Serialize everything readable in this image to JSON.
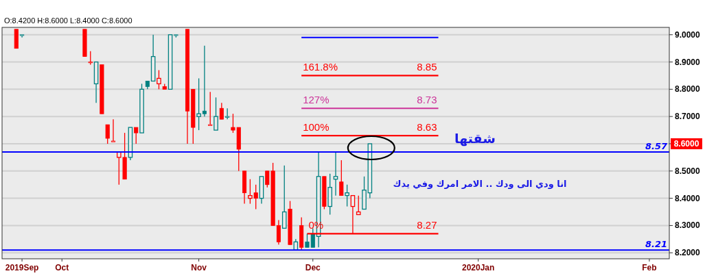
{
  "chart_data": {
    "type": "candlestick",
    "categories": [
      null,
      null,
      null,
      "2019Sep",
      null,
      null,
      null,
      null,
      null,
      null,
      "Oct",
      null,
      null,
      null,
      null,
      null,
      null,
      null,
      null,
      null,
      null,
      null,
      null,
      null,
      null,
      null,
      null,
      null,
      null,
      null,
      null,
      null,
      null,
      null,
      "Nov",
      null,
      null,
      null,
      null,
      null,
      null,
      null,
      null,
      null,
      null,
      null,
      null,
      null,
      null,
      null,
      null,
      null,
      null,
      null,
      "Dec",
      null,
      null,
      null,
      null,
      null,
      null,
      null,
      null,
      null,
      null,
      null,
      null,
      null,
      null,
      null,
      null,
      null,
      null,
      null,
      null,
      null,
      null,
      null,
      null,
      null,
      null,
      null,
      null,
      "2020Jan",
      null,
      null,
      null,
      null,
      null,
      null,
      null,
      null,
      null,
      null,
      null,
      null,
      null,
      null,
      null,
      null,
      null,
      null,
      null,
      null,
      null,
      null,
      null,
      null,
      null,
      null,
      null,
      null,
      null,
      "Feb",
      null,
      null,
      null
    ],
    "ohlc": [
      null,
      null,
      [
        9.02,
        9.02,
        8.95,
        8.95
      ],
      [
        9.0,
        9.0,
        8.99,
        9.0
      ],
      null,
      null,
      null,
      null,
      null,
      null,
      null,
      null,
      null,
      null,
      [
        9.02,
        9.02,
        8.92,
        8.92
      ],
      [
        8.9,
        8.94,
        8.89,
        8.9
      ],
      [
        8.82,
        8.9,
        8.75,
        8.9
      ],
      [
        8.89,
        8.89,
        8.71,
        8.71
      ],
      [
        8.67,
        8.67,
        8.6,
        8.62
      ],
      [
        8.61,
        8.69,
        8.61,
        8.61
      ],
      [
        8.55,
        8.57,
        8.45,
        8.57
      ],
      [
        8.55,
        8.64,
        8.47,
        8.47
      ],
      [
        8.55,
        8.66,
        8.54,
        8.66
      ],
      [
        8.66,
        8.66,
        8.6,
        8.64
      ],
      [
        8.64,
        8.82,
        8.64,
        8.8
      ],
      [
        8.83,
        8.83,
        8.8,
        8.81
      ],
      [
        8.83,
        9.0,
        8.83,
        8.92
      ],
      [
        8.82,
        8.87,
        8.8,
        8.84
      ],
      [
        8.81,
        8.82,
        8.8,
        8.8
      ],
      [
        8.8,
        9.0,
        8.8,
        9.0
      ],
      [
        9.0,
        9.0,
        8.99,
        9.0
      ],
      null,
      [
        9.02,
        9.02,
        8.6,
        8.72
      ],
      [
        8.8,
        8.8,
        8.6,
        8.66
      ],
      [
        8.7,
        8.84,
        8.65,
        8.71
      ],
      [
        8.72,
        8.96,
        8.7,
        8.71
      ],
      [
        8.67,
        8.79,
        8.67,
        8.67
      ],
      [
        8.65,
        8.77,
        8.65,
        8.7
      ],
      [
        8.73,
        8.75,
        8.69,
        8.69
      ],
      [
        8.7,
        8.73,
        8.69,
        8.7
      ],
      [
        8.66,
        8.71,
        8.64,
        8.65
      ],
      [
        8.66,
        8.66,
        8.5,
        8.58
      ],
      [
        8.5,
        8.5,
        8.38,
        8.42
      ],
      [
        8.4,
        8.47,
        8.38,
        8.41
      ],
      [
        8.42,
        8.45,
        8.36,
        8.4
      ],
      [
        8.4,
        8.48,
        8.38,
        8.48
      ],
      [
        8.5,
        8.5,
        8.44,
        8.45
      ],
      [
        8.5,
        8.53,
        8.3,
        8.3
      ],
      [
        8.3,
        8.32,
        8.23,
        8.24
      ],
      [
        8.29,
        8.52,
        8.29,
        8.35
      ],
      [
        8.36,
        8.39,
        8.23,
        8.23
      ],
      [
        8.21,
        8.25,
        8.21,
        8.24
      ],
      [
        8.3,
        8.33,
        8.21,
        8.22
      ],
      [
        8.24,
        8.27,
        8.22,
        8.22
      ],
      [
        8.27,
        8.29,
        8.22,
        8.22
      ],
      [
        8.26,
        8.57,
        8.22,
        8.48
      ],
      [
        8.48,
        8.48,
        8.36,
        8.37
      ],
      [
        8.37,
        8.49,
        8.34,
        8.44
      ],
      [
        8.47,
        8.57,
        8.41,
        8.48
      ],
      [
        8.46,
        8.54,
        8.41,
        8.41
      ],
      [
        8.41,
        8.45,
        8.37,
        8.42
      ],
      [
        8.37,
        8.41,
        8.27,
        8.41
      ],
      [
        8.34,
        8.41,
        8.34,
        8.35
      ],
      [
        8.36,
        8.48,
        8.36,
        8.43
      ],
      [
        8.42,
        8.6,
        8.4,
        8.6
      ],
      null,
      null,
      null,
      null,
      null,
      null,
      null,
      null,
      null,
      null,
      null,
      null,
      null,
      null,
      null,
      null,
      null,
      null,
      null,
      null,
      null,
      null,
      null,
      null,
      null,
      null,
      null,
      null,
      null,
      null,
      null,
      null,
      null,
      null,
      null,
      null,
      null,
      null,
      null,
      null,
      null,
      null,
      null,
      null,
      null,
      null,
      null,
      null,
      null,
      null,
      null,
      null
    ],
    "colors": [
      null,
      null,
      "#ff0000",
      "#008080",
      null,
      null,
      null,
      null,
      null,
      null,
      null,
      null,
      null,
      null,
      "#ff0000",
      "#ff0000",
      "#008080",
      "#ff0000",
      "#ff0000",
      "#ff0000",
      "#ff0000",
      "#ff0000",
      "#008080",
      "#ff0000",
      "#008080",
      "#008080",
      "#008080",
      "#ff0000",
      "#ff0000",
      "#008080",
      "#008080",
      null,
      "#ff0000",
      "#ff0000",
      "#008080",
      "#008080",
      "#ff0000",
      "#008080",
      "#ff0000",
      "#008080",
      "#ff0000",
      "#ff0000",
      "#ff0000",
      "#ff0000",
      "#ff0000",
      "#008080",
      "#ff0000",
      "#ff0000",
      "#ff0000",
      "#008080",
      "#ff0000",
      "#008080",
      "#ff0000",
      "#008080",
      "#008080",
      "#008080",
      "#ff0000",
      "#008080",
      "#008080",
      "#ff0000",
      "#008080",
      "#ff0000",
      "#ff0000",
      "#008080",
      "#008080",
      null,
      null,
      null,
      null,
      null,
      null,
      null,
      null,
      null,
      null,
      null,
      null,
      null,
      null,
      null,
      null,
      null,
      null,
      null,
      null,
      null,
      null,
      null,
      null,
      null,
      null,
      null,
      null,
      null,
      null,
      null,
      null,
      null,
      null,
      null,
      null,
      null,
      null,
      null,
      null,
      null,
      null,
      null,
      null,
      null,
      null,
      null,
      null,
      null,
      null,
      null,
      null
    ],
    "series": [
      {
        "type": "line",
        "color": "#0000ff",
        "values": [
          null,
          null,
          null,
          null,
          null,
          null,
          null,
          null,
          null,
          null,
          null,
          null,
          null,
          null,
          null,
          null,
          null,
          null,
          null,
          null,
          null,
          null,
          null,
          null,
          null,
          null,
          null,
          null,
          null,
          null,
          null,
          null,
          null,
          null,
          null,
          null,
          null,
          null,
          null,
          null,
          null,
          null,
          null,
          null,
          null,
          null,
          null,
          null,
          null,
          null,
          null,
          null,
          8.99,
          8.99,
          8.99,
          8.99,
          8.99,
          8.99,
          8.99,
          8.99,
          8.99,
          8.99,
          8.99,
          8.99,
          8.99,
          8.99,
          8.99,
          8.99,
          8.99,
          8.99,
          8.99,
          8.99,
          8.99,
          8.99,
          8.99,
          8.99,
          8.99,
          null,
          null,
          null,
          null,
          null,
          null,
          null,
          null,
          null,
          null,
          null,
          null,
          null,
          null,
          null,
          null,
          null,
          null,
          null,
          null,
          null,
          null,
          null,
          null,
          null,
          null,
          null,
          null,
          null,
          null,
          null,
          null,
          null,
          null,
          null,
          null,
          null,
          null,
          null,
          null
        ]
      },
      {
        "type": "line",
        "color": "#ff0000",
        "values": [
          null,
          null,
          null,
          null,
          null,
          null,
          null,
          null,
          null,
          null,
          null,
          null,
          null,
          null,
          null,
          null,
          null,
          null,
          null,
          null,
          null,
          null,
          null,
          null,
          null,
          null,
          null,
          null,
          null,
          null,
          null,
          null,
          null,
          null,
          null,
          null,
          null,
          null,
          null,
          null,
          null,
          null,
          null,
          null,
          null,
          null,
          null,
          null,
          null,
          null,
          null,
          null,
          8.85,
          8.85,
          8.85,
          8.85,
          8.85,
          8.85,
          8.85,
          8.85,
          8.85,
          8.85,
          8.85,
          8.85,
          8.85,
          8.85,
          8.85,
          8.85,
          8.85,
          8.85,
          8.85,
          8.85,
          8.85,
          8.85,
          8.85,
          8.85,
          8.85,
          null,
          null,
          null,
          null,
          null,
          null,
          null,
          null,
          null,
          null,
          null,
          null,
          null,
          null,
          null,
          null,
          null,
          null,
          null,
          null,
          null,
          null,
          null,
          null,
          null,
          null,
          null,
          null,
          null,
          null,
          null,
          null,
          null,
          null,
          null,
          null,
          null,
          null,
          null,
          null
        ]
      },
      {
        "type": "line",
        "color": "#cc3399",
        "values": [
          null,
          null,
          null,
          null,
          null,
          null,
          null,
          null,
          null,
          null,
          null,
          null,
          null,
          null,
          null,
          null,
          null,
          null,
          null,
          null,
          null,
          null,
          null,
          null,
          null,
          null,
          null,
          null,
          null,
          null,
          null,
          null,
          null,
          null,
          null,
          null,
          null,
          null,
          null,
          null,
          null,
          null,
          null,
          null,
          null,
          null,
          null,
          null,
          null,
          null,
          null,
          null,
          8.73,
          8.73,
          8.73,
          8.73,
          8.73,
          8.73,
          8.73,
          8.73,
          8.73,
          8.73,
          8.73,
          8.73,
          8.73,
          8.73,
          8.73,
          8.73,
          8.73,
          8.73,
          8.73,
          8.73,
          8.73,
          8.73,
          8.73,
          8.73,
          8.73,
          null,
          null,
          null,
          null,
          null,
          null,
          null,
          null,
          null,
          null,
          null,
          null,
          null,
          null,
          null,
          null,
          null,
          null,
          null,
          null,
          null,
          null,
          null,
          null,
          null,
          null,
          null,
          null,
          null,
          null,
          null,
          null,
          null,
          null,
          null,
          null,
          null,
          null,
          null,
          null
        ]
      },
      {
        "type": "line",
        "color": "#ff0000",
        "values": [
          null,
          null,
          null,
          null,
          null,
          null,
          null,
          null,
          null,
          null,
          null,
          null,
          null,
          null,
          null,
          null,
          null,
          null,
          null,
          null,
          null,
          null,
          null,
          null,
          null,
          null,
          null,
          null,
          null,
          null,
          null,
          null,
          null,
          null,
          null,
          null,
          null,
          null,
          null,
          null,
          null,
          null,
          null,
          null,
          null,
          null,
          null,
          null,
          null,
          null,
          null,
          null,
          8.63,
          8.63,
          8.63,
          8.63,
          8.63,
          8.63,
          8.63,
          8.63,
          8.63,
          8.63,
          8.63,
          8.63,
          8.63,
          8.63,
          8.63,
          8.63,
          8.63,
          8.63,
          8.63,
          8.63,
          8.63,
          8.63,
          8.63,
          8.63,
          8.63,
          null,
          null,
          null,
          null,
          null,
          null,
          null,
          null,
          null,
          null,
          null,
          null,
          null,
          null,
          null,
          null,
          null,
          null,
          null,
          null,
          null,
          null,
          null,
          null,
          null,
          null,
          null,
          null,
          null,
          null,
          null,
          null,
          null,
          null,
          null,
          null,
          null,
          null,
          null,
          null
        ]
      },
      {
        "type": "line",
        "color": "#ff0000",
        "values": [
          null,
          null,
          null,
          null,
          null,
          null,
          null,
          null,
          null,
          null,
          null,
          null,
          null,
          null,
          null,
          null,
          null,
          null,
          null,
          null,
          null,
          null,
          null,
          null,
          null,
          null,
          null,
          null,
          null,
          null,
          null,
          null,
          null,
          null,
          null,
          null,
          null,
          null,
          null,
          null,
          null,
          null,
          null,
          null,
          null,
          null,
          null,
          null,
          null,
          null,
          null,
          null,
          null,
          8.27,
          8.27,
          8.27,
          8.27,
          8.27,
          8.27,
          8.27,
          8.27,
          8.27,
          8.27,
          8.27,
          8.27,
          8.27,
          8.27,
          8.27,
          8.27,
          8.27,
          8.27,
          8.27,
          8.27,
          8.27,
          8.27,
          8.27,
          8.27,
          null,
          null,
          null,
          null,
          null,
          null,
          null,
          null,
          null,
          null,
          null,
          null,
          null,
          null,
          null,
          null,
          null,
          null,
          null,
          null,
          null,
          null,
          null,
          null,
          null,
          null,
          null,
          null,
          null,
          null,
          null,
          null,
          null,
          null,
          null,
          null,
          null,
          null,
          null,
          null
        ]
      }
    ],
    "ref_lines": [
      {
        "axis": "y",
        "value": 8.57,
        "label": "8.57",
        "color": "#0000ff"
      },
      {
        "axis": "y",
        "value": 8.21,
        "label": "8.21",
        "color": "#0000ff"
      }
    ],
    "annotations": [
      "O:8.4200 H:8.6000 L:8.4000 C:8.6000",
      {
        "text": "161.8%",
        "y": 8.85
      },
      {
        "text": "8.85",
        "y": 8.85
      },
      {
        "text": "127%",
        "y": 8.73
      },
      {
        "text": "8.73",
        "y": 8.73
      },
      {
        "text": "100%",
        "y": 8.63
      },
      {
        "text": "8.63",
        "y": 8.63
      },
      {
        "text": "0%",
        "y": 8.27
      },
      {
        "text": "8.27",
        "y": 8.27
      },
      "شقتها",
      "انا ودي الى ودك .. الامر امرك وفي يدك",
      "8.6000"
    ],
    "ylim": [
      8.178,
      9.027
    ],
    "yticks": [
      {
        "value": 8.2,
        "label": "8.2000"
      },
      {
        "value": 8.3,
        "label": "8.3000"
      },
      {
        "value": 8.4,
        "label": "8.4000"
      },
      {
        "value": 8.5,
        "label": "8.5000"
      },
      {
        "value": 8.6,
        "label": null
      },
      {
        "value": 8.7,
        "label": "8.7000"
      },
      {
        "value": 8.8,
        "label": "8.8000"
      },
      {
        "value": 8.9,
        "label": "8.9000"
      },
      {
        "value": 9.0,
        "label": "9.0000"
      }
    ],
    "grid": "y"
  }
}
